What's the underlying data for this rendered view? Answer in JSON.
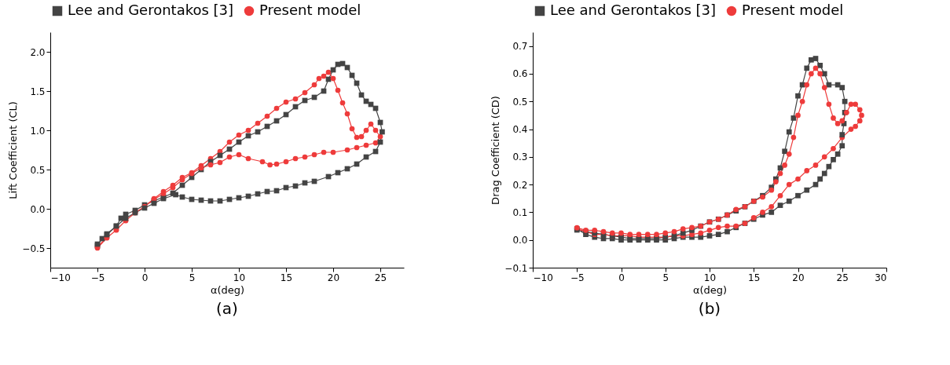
{
  "chart_data": [
    {
      "type": "line",
      "xlabel": "α(deg)",
      "ylabel": "Lift Coefficient (CL)",
      "annotations": [
        "(a)"
      ],
      "legend": "top",
      "grid": false,
      "line_style": "solid",
      "xlim": [
        -10,
        27.5
      ],
      "xticks": [
        -10,
        -5,
        0,
        5,
        10,
        15,
        20,
        25
      ],
      "ylim": [
        -0.75,
        2.25
      ],
      "yticks": [
        -0.5,
        {
          "value": 0,
          "label": "0.0"
        },
        0.5,
        {
          "value": 1,
          "label": "1.0"
        },
        1.5,
        {
          "value": 2,
          "label": "2.0"
        }
      ],
      "series": [
        {
          "name": "Lee and Gerontakos [3]",
          "color": "#444444",
          "marker": "square",
          "x": [
            -5,
            -4.5,
            -4,
            -3,
            -2.5,
            -2,
            -1,
            0,
            1,
            2,
            3,
            4,
            5,
            6,
            7,
            8,
            9,
            10,
            11,
            12,
            13,
            14,
            15,
            16,
            17,
            18,
            19,
            19.5,
            20,
            20.5,
            21,
            21.5,
            22,
            22.5,
            23,
            23.5,
            24,
            24.5,
            25,
            25.2,
            25,
            24.5,
            23.5,
            22.5,
            21.5,
            20.5,
            19.5,
            18,
            17,
            16,
            15,
            14,
            13,
            12,
            11,
            10,
            9,
            8,
            7,
            6,
            5,
            4,
            3.3,
            2,
            1,
            0,
            -1,
            -2,
            -3,
            -4,
            -5
          ],
          "values": [
            -0.47,
            -0.38,
            -0.32,
            -0.22,
            -0.12,
            -0.07,
            -0.02,
            0.05,
            0.1,
            0.15,
            0.2,
            0.3,
            0.4,
            0.5,
            0.6,
            0.68,
            0.76,
            0.85,
            0.93,
            0.98,
            1.05,
            1.12,
            1.2,
            1.3,
            1.38,
            1.42,
            1.5,
            1.65,
            1.77,
            1.84,
            1.85,
            1.8,
            1.7,
            1.6,
            1.45,
            1.37,
            1.33,
            1.28,
            1.1,
            0.98,
            0.85,
            0.73,
            0.66,
            0.57,
            0.51,
            0.46,
            0.41,
            0.35,
            0.33,
            0.29,
            0.27,
            0.23,
            0.22,
            0.19,
            0.16,
            0.14,
            0.12,
            0.1,
            0.1,
            0.11,
            0.12,
            0.15,
            0.18,
            0.13,
            0.07,
            0.01,
            -0.05,
            -0.12,
            -0.22,
            -0.33,
            -0.45
          ]
        },
        {
          "name": "Present model",
          "color": "#ee3b3b",
          "marker": "circle",
          "x": [
            -5,
            -4,
            -3,
            -2,
            -1,
            0,
            1,
            2,
            3,
            4,
            5,
            6,
            7,
            8,
            9,
            10,
            11,
            12,
            13,
            14,
            15,
            16,
            17,
            18,
            18.5,
            19,
            19.5,
            20,
            20.5,
            21,
            21.5,
            22,
            22.5,
            23,
            23.5,
            24,
            24.5,
            25,
            24.5,
            23.5,
            22.5,
            21.5,
            20,
            19,
            18,
            17,
            16,
            15,
            14,
            13.3,
            12.5,
            11,
            10,
            9,
            8,
            7,
            6,
            5,
            4,
            3,
            2,
            1,
            0,
            -1,
            -2,
            -3,
            -4,
            -5
          ],
          "values": [
            -0.5,
            -0.37,
            -0.27,
            -0.15,
            -0.05,
            0.03,
            0.13,
            0.22,
            0.3,
            0.4,
            0.46,
            0.55,
            0.64,
            0.73,
            0.85,
            0.94,
            1.0,
            1.09,
            1.18,
            1.28,
            1.36,
            1.4,
            1.48,
            1.58,
            1.66,
            1.69,
            1.74,
            1.66,
            1.51,
            1.35,
            1.21,
            1.02,
            0.91,
            0.92,
            1.0,
            1.08,
            1.0,
            0.92,
            0.84,
            0.81,
            0.78,
            0.75,
            0.72,
            0.72,
            0.69,
            0.66,
            0.64,
            0.6,
            0.57,
            0.56,
            0.6,
            0.64,
            0.69,
            0.66,
            0.59,
            0.56,
            0.52,
            0.45,
            0.37,
            0.27,
            0.19,
            0.12,
            0.03,
            -0.05,
            -0.15,
            -0.27,
            -0.37,
            -0.48
          ]
        }
      ]
    },
    {
      "type": "line",
      "xlabel": "α(deg)",
      "ylabel": "Drag Coefficient (CD)",
      "annotations": [
        "(b)"
      ],
      "legend": "top",
      "grid": false,
      "line_style": "solid",
      "xlim": [
        -10,
        30
      ],
      "xticks": [
        -10,
        -5,
        0,
        5,
        10,
        15,
        20,
        25,
        30
      ],
      "ylim": [
        -0.1,
        0.75
      ],
      "yticks": [
        -0.1,
        {
          "value": 0,
          "label": "0.0"
        },
        0.1,
        0.2,
        0.3,
        0.4,
        0.5,
        0.6,
        0.7
      ],
      "series": [
        {
          "name": "Lee and Gerontakos [3]",
          "color": "#444444",
          "marker": "square",
          "x": [
            -5,
            -4,
            -3,
            -2,
            -1,
            0,
            1,
            2,
            3,
            4,
            5,
            6,
            7,
            8,
            9,
            10,
            11,
            12,
            13,
            14,
            15,
            16,
            17,
            18,
            19,
            20,
            21,
            22,
            22.5,
            23,
            23.5,
            24,
            24.5,
            25,
            25,
            25.2,
            25.3,
            25.3,
            25,
            24.5,
            23.5,
            23,
            22.5,
            22,
            21.5,
            21,
            20.5,
            20,
            19.5,
            19,
            18.5,
            18,
            17.5,
            17,
            16,
            15,
            14,
            13,
            12,
            11,
            10,
            9,
            8,
            7,
            6,
            5,
            4,
            3,
            2,
            1,
            0,
            -1,
            -2,
            -3,
            -4,
            -5
          ],
          "values": [
            0.04,
            0.02,
            0.01,
            0.005,
            0.005,
            0.0,
            0.0,
            0.0,
            0.0,
            0.0,
            0.0,
            0.005,
            0.01,
            0.01,
            0.01,
            0.015,
            0.02,
            0.03,
            0.045,
            0.06,
            0.075,
            0.09,
            0.1,
            0.125,
            0.14,
            0.16,
            0.18,
            0.2,
            0.22,
            0.24,
            0.265,
            0.29,
            0.31,
            0.34,
            0.38,
            0.42,
            0.46,
            0.5,
            0.55,
            0.56,
            0.56,
            0.6,
            0.63,
            0.655,
            0.65,
            0.62,
            0.56,
            0.52,
            0.44,
            0.39,
            0.32,
            0.26,
            0.22,
            0.19,
            0.16,
            0.14,
            0.12,
            0.105,
            0.09,
            0.075,
            0.065,
            0.05,
            0.035,
            0.025,
            0.015,
            0.01,
            0.005,
            0.005,
            0.005,
            0.005,
            0.01,
            0.015,
            0.02,
            0.025,
            0.03,
            0.036
          ]
        },
        {
          "name": "Present model",
          "color": "#ee3b3b",
          "marker": "circle",
          "x": [
            -5,
            -4,
            -3,
            -2,
            -1,
            0,
            1,
            2,
            3,
            4,
            5,
            6,
            7,
            8,
            9,
            10,
            11,
            12,
            13,
            14,
            15,
            16,
            17,
            18,
            19,
            20,
            21,
            22,
            23,
            24,
            25,
            26,
            26.5,
            27,
            27.2,
            27,
            26.5,
            26,
            25.5,
            25,
            24.5,
            24,
            23.5,
            23,
            22.5,
            22,
            21.5,
            21,
            20.5,
            20,
            19.5,
            19,
            18.5,
            18,
            17.5,
            17,
            16,
            15,
            14,
            13,
            12,
            11,
            10,
            9,
            8,
            7,
            6,
            5,
            4,
            3,
            2,
            1,
            0,
            -1,
            -2,
            -3,
            -4,
            -5
          ],
          "values": [
            0.04,
            0.03,
            0.02,
            0.02,
            0.015,
            0.015,
            0.015,
            0.01,
            0.01,
            0.01,
            0.01,
            0.015,
            0.015,
            0.02,
            0.025,
            0.035,
            0.045,
            0.05,
            0.05,
            0.06,
            0.08,
            0.1,
            0.12,
            0.16,
            0.2,
            0.22,
            0.25,
            0.27,
            0.3,
            0.33,
            0.37,
            0.4,
            0.41,
            0.43,
            0.45,
            0.47,
            0.49,
            0.49,
            0.46,
            0.43,
            0.42,
            0.44,
            0.49,
            0.55,
            0.6,
            0.62,
            0.6,
            0.56,
            0.5,
            0.45,
            0.37,
            0.31,
            0.27,
            0.24,
            0.21,
            0.18,
            0.155,
            0.14,
            0.12,
            0.11,
            0.09,
            0.075,
            0.065,
            0.05,
            0.045,
            0.04,
            0.03,
            0.025,
            0.02,
            0.02,
            0.02,
            0.02,
            0.025,
            0.025,
            0.03,
            0.035,
            0.035,
            0.044
          ]
        }
      ]
    }
  ]
}
